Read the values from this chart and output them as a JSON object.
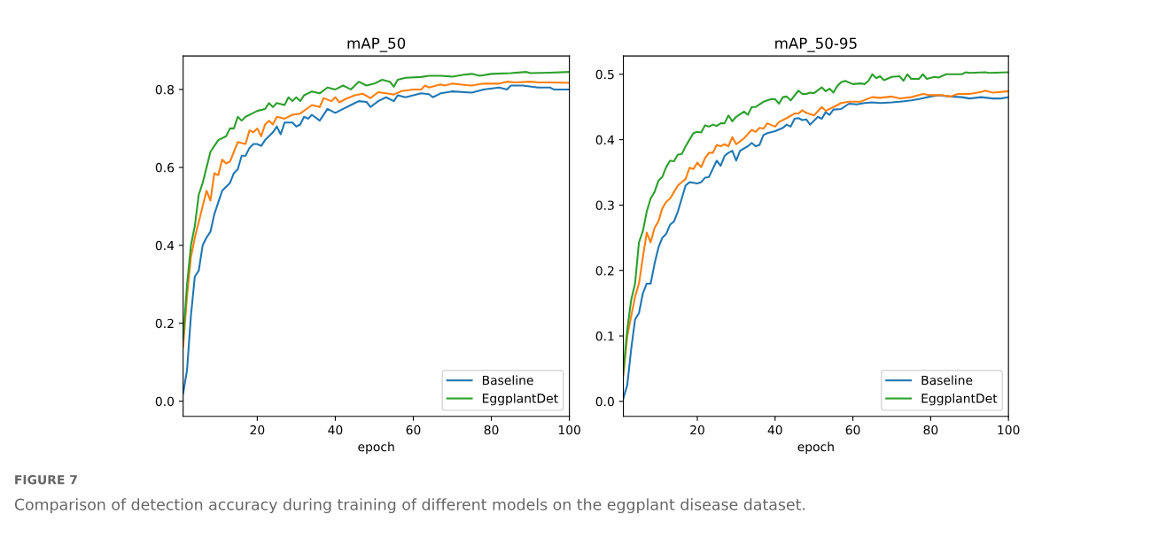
{
  "chart_data": [
    {
      "type": "line",
      "title": "mAP_50",
      "xlabel": "epoch",
      "xlim": [
        1,
        100
      ],
      "xticks": [
        20,
        40,
        60,
        80,
        100
      ],
      "ylim": [
        -0.039,
        0.886
      ],
      "yticks": [
        {
          "value": 0,
          "label": "0.0"
        },
        0.2,
        0.4,
        0.6,
        0.8
      ],
      "legend": "bottom right",
      "grid": false,
      "marker": "none",
      "line_style": "solid",
      "annotations": [
        "FIGURE 7",
        "Comparison of detection accuracy during training of different models on the eggplant disease dataset."
      ],
      "series": [
        {
          "name": "Baseline",
          "color": "#1f77b4",
          "x": [
            1,
            2,
            3,
            4,
            5,
            6,
            7,
            8,
            9,
            10,
            11,
            12,
            13,
            14,
            15,
            16,
            17,
            18,
            19,
            20,
            21,
            22,
            24,
            25,
            26,
            27,
            29,
            30,
            31,
            32,
            33,
            34,
            36,
            38,
            40,
            42,
            44,
            46,
            48,
            49,
            51,
            53,
            55,
            56,
            58,
            60,
            62,
            64,
            65,
            67,
            70,
            75,
            78,
            82,
            84,
            85,
            88,
            92,
            95,
            96,
            100
          ],
          "values": [
            0.02,
            0.08,
            0.22,
            0.32,
            0.335,
            0.4,
            0.42,
            0.435,
            0.48,
            0.51,
            0.54,
            0.55,
            0.56,
            0.585,
            0.595,
            0.63,
            0.63,
            0.65,
            0.66,
            0.66,
            0.655,
            0.67,
            0.69,
            0.705,
            0.685,
            0.715,
            0.715,
            0.705,
            0.71,
            0.73,
            0.725,
            0.735,
            0.72,
            0.75,
            0.74,
            0.75,
            0.76,
            0.77,
            0.768,
            0.755,
            0.77,
            0.78,
            0.77,
            0.785,
            0.78,
            0.785,
            0.79,
            0.788,
            0.78,
            0.79,
            0.795,
            0.792,
            0.8,
            0.805,
            0.8,
            0.81,
            0.81,
            0.805,
            0.805,
            0.8,
            0.8
          ]
        },
        {
          "color": "#ff7f0e",
          "x": [
            1,
            2,
            3,
            4,
            5,
            6,
            7,
            8,
            9,
            10,
            11,
            12,
            13,
            14,
            15,
            17,
            18,
            19,
            20,
            21,
            22,
            23,
            24,
            25,
            27,
            29,
            31,
            34,
            36,
            37,
            39,
            40,
            41,
            43,
            45,
            47,
            49,
            51,
            53,
            55,
            57,
            60,
            62,
            63,
            64,
            67,
            68,
            70,
            73,
            75,
            78,
            82,
            84,
            86,
            90,
            92,
            95,
            100
          ],
          "values": [
            0.14,
            0.27,
            0.37,
            0.42,
            0.46,
            0.5,
            0.54,
            0.515,
            0.585,
            0.58,
            0.62,
            0.61,
            0.615,
            0.64,
            0.665,
            0.66,
            0.695,
            0.69,
            0.7,
            0.68,
            0.71,
            0.72,
            0.71,
            0.73,
            0.725,
            0.735,
            0.738,
            0.76,
            0.755,
            0.778,
            0.77,
            0.78,
            0.767,
            0.777,
            0.785,
            0.789,
            0.778,
            0.793,
            0.79,
            0.787,
            0.796,
            0.8,
            0.8,
            0.81,
            0.805,
            0.813,
            0.81,
            0.815,
            0.812,
            0.81,
            0.815,
            0.815,
            0.82,
            0.818,
            0.82,
            0.818,
            0.818,
            0.817
          ]
        },
        {
          "name": "EggplantDet",
          "color": "#2ca02c",
          "x": [
            1,
            2,
            3,
            4,
            5,
            6,
            7,
            8,
            9,
            10,
            12,
            13,
            14,
            15,
            16,
            17,
            19,
            20,
            22,
            23,
            24,
            25,
            27,
            28,
            29,
            30,
            31,
            32,
            34,
            36,
            38,
            40,
            42,
            44,
            46,
            48,
            50,
            52,
            54,
            55,
            56,
            58,
            62,
            64,
            67,
            70,
            73,
            75,
            77,
            80,
            85,
            89,
            90,
            95,
            100
          ],
          "values": [
            0.16,
            0.3,
            0.4,
            0.45,
            0.53,
            0.56,
            0.6,
            0.64,
            0.655,
            0.67,
            0.68,
            0.7,
            0.7,
            0.73,
            0.72,
            0.73,
            0.74,
            0.745,
            0.75,
            0.765,
            0.755,
            0.765,
            0.76,
            0.78,
            0.77,
            0.78,
            0.77,
            0.785,
            0.795,
            0.79,
            0.805,
            0.8,
            0.81,
            0.8,
            0.82,
            0.81,
            0.815,
            0.825,
            0.82,
            0.807,
            0.825,
            0.83,
            0.832,
            0.835,
            0.835,
            0.833,
            0.838,
            0.84,
            0.835,
            0.84,
            0.842,
            0.845,
            0.842,
            0.843,
            0.845
          ]
        }
      ]
    },
    {
      "type": "line",
      "title": "mAP_50-95",
      "xlabel": "epoch",
      "xlim": [
        1,
        100
      ],
      "xticks": [
        20,
        40,
        60,
        80,
        100
      ],
      "ylim": [
        -0.023,
        0.528
      ],
      "yticks": [
        {
          "value": 0,
          "label": "0.0"
        },
        0.1,
        0.2,
        0.3,
        0.4,
        0.5
      ],
      "legend": "bottom right",
      "grid": false,
      "marker": "none",
      "line_style": "solid",
      "series": [
        {
          "name": "Baseline",
          "color": "#1f77b4",
          "x": [
            1,
            2,
            3,
            4,
            5,
            6,
            7,
            8,
            9,
            10,
            11,
            12,
            13,
            14,
            15,
            16,
            17,
            18,
            20,
            21,
            22,
            23,
            25,
            26,
            27,
            28,
            29,
            30,
            31,
            33,
            34,
            35,
            36,
            37,
            38,
            40,
            42,
            43,
            44,
            45,
            46,
            47,
            48,
            49,
            51,
            52,
            53,
            54,
            55,
            57,
            59,
            61,
            63,
            65,
            67,
            70,
            72,
            75,
            77,
            80,
            82,
            85,
            88,
            90,
            93,
            96,
            98,
            100
          ],
          "values": [
            0.005,
            0.025,
            0.08,
            0.125,
            0.135,
            0.165,
            0.18,
            0.18,
            0.21,
            0.235,
            0.25,
            0.256,
            0.27,
            0.275,
            0.29,
            0.31,
            0.33,
            0.335,
            0.333,
            0.335,
            0.342,
            0.343,
            0.368,
            0.36,
            0.375,
            0.38,
            0.383,
            0.368,
            0.383,
            0.39,
            0.395,
            0.39,
            0.392,
            0.407,
            0.41,
            0.413,
            0.418,
            0.423,
            0.42,
            0.432,
            0.433,
            0.43,
            0.431,
            0.423,
            0.435,
            0.432,
            0.442,
            0.438,
            0.446,
            0.447,
            0.455,
            0.454,
            0.456,
            0.457,
            0.456,
            0.457,
            0.458,
            0.46,
            0.462,
            0.466,
            0.468,
            0.466,
            0.465,
            0.463,
            0.465,
            0.463,
            0.463,
            0.465
          ]
        },
        {
          "color": "#ff7f0e",
          "x": [
            1,
            2,
            3,
            4,
            5,
            6,
            7,
            8,
            9,
            10,
            11,
            12,
            13,
            14,
            15,
            17,
            18,
            19,
            20,
            21,
            22,
            23,
            24,
            25,
            26,
            27,
            28,
            29,
            30,
            32,
            34,
            35,
            36,
            37,
            38,
            40,
            41,
            43,
            45,
            46,
            47,
            48,
            50,
            52,
            53,
            55,
            57,
            59,
            62,
            64,
            65,
            67,
            70,
            72,
            75,
            78,
            80,
            83,
            85,
            87,
            90,
            93,
            94,
            96,
            100
          ],
          "values": [
            0.04,
            0.1,
            0.13,
            0.16,
            0.18,
            0.22,
            0.258,
            0.243,
            0.265,
            0.275,
            0.295,
            0.305,
            0.31,
            0.32,
            0.33,
            0.34,
            0.357,
            0.355,
            0.365,
            0.358,
            0.372,
            0.38,
            0.38,
            0.392,
            0.39,
            0.393,
            0.39,
            0.404,
            0.393,
            0.402,
            0.415,
            0.412,
            0.418,
            0.417,
            0.425,
            0.42,
            0.427,
            0.433,
            0.44,
            0.44,
            0.445,
            0.441,
            0.437,
            0.45,
            0.444,
            0.45,
            0.456,
            0.458,
            0.458,
            0.463,
            0.465,
            0.464,
            0.466,
            0.463,
            0.465,
            0.47,
            0.468,
            0.468,
            0.466,
            0.47,
            0.47,
            0.473,
            0.475,
            0.472,
            0.474
          ]
        },
        {
          "name": "EggplantDet",
          "color": "#2ca02c",
          "x": [
            1,
            2,
            3,
            4,
            5,
            6,
            7,
            8,
            9,
            10,
            11,
            12,
            13,
            14,
            15,
            16,
            17,
            18,
            19,
            20,
            21,
            22,
            23,
            24,
            25,
            26,
            27,
            28,
            29,
            30,
            32,
            33,
            34,
            35,
            37,
            39,
            40,
            41,
            42,
            43,
            44,
            46,
            47,
            48,
            49,
            50,
            52,
            53,
            54,
            55,
            56,
            57,
            58,
            60,
            62,
            63,
            64,
            65,
            66,
            67,
            68,
            70,
            72,
            73,
            74,
            75,
            77,
            78,
            79,
            81,
            82,
            84,
            86,
            88,
            89,
            90,
            94,
            95,
            100
          ],
          "values": [
            0.045,
            0.11,
            0.155,
            0.18,
            0.243,
            0.26,
            0.29,
            0.31,
            0.32,
            0.337,
            0.343,
            0.358,
            0.368,
            0.367,
            0.377,
            0.378,
            0.39,
            0.4,
            0.41,
            0.412,
            0.411,
            0.422,
            0.42,
            0.423,
            0.421,
            0.425,
            0.425,
            0.437,
            0.428,
            0.435,
            0.443,
            0.438,
            0.45,
            0.45,
            0.458,
            0.462,
            0.462,
            0.455,
            0.465,
            0.466,
            0.46,
            0.475,
            0.47,
            0.47,
            0.472,
            0.471,
            0.48,
            0.474,
            0.478,
            0.472,
            0.482,
            0.488,
            0.49,
            0.485,
            0.486,
            0.485,
            0.49,
            0.5,
            0.494,
            0.497,
            0.491,
            0.496,
            0.497,
            0.49,
            0.5,
            0.493,
            0.493,
            0.5,
            0.493,
            0.496,
            0.495,
            0.5,
            0.5,
            0.5,
            0.503,
            0.502,
            0.503,
            0.502,
            0.503
          ]
        }
      ]
    }
  ]
}
